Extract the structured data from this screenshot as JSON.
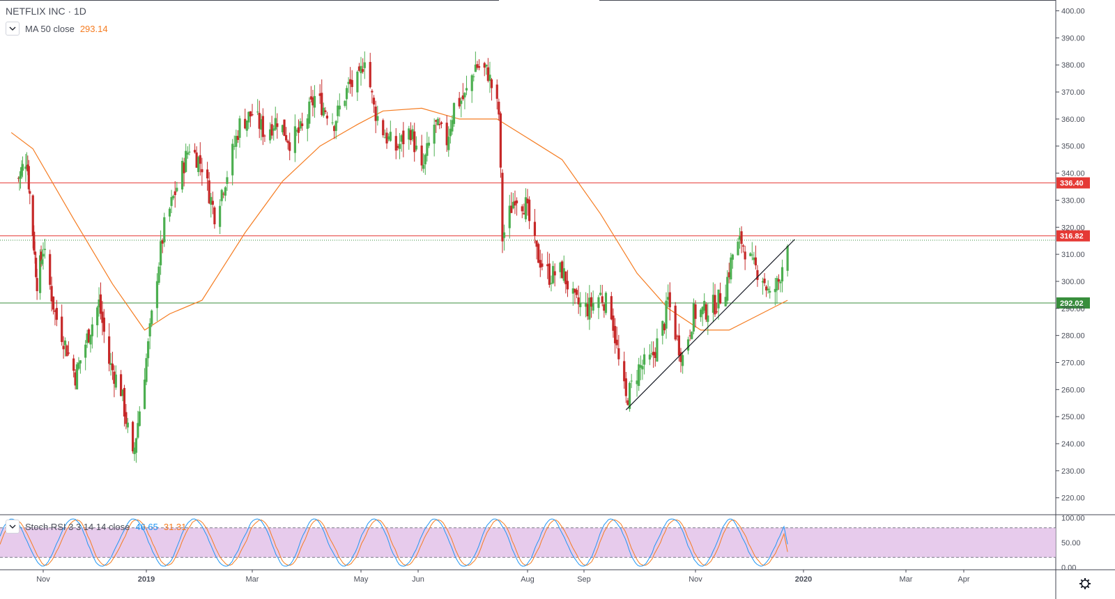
{
  "header": {
    "symbol": "NETFLIX INC · 1D"
  },
  "indicators": {
    "ma": {
      "label": "MA 50 close",
      "value": "293.14",
      "color": "#f57c21"
    },
    "stoch_rsi": {
      "label": "Stoch RSI 3 3 14 14 close",
      "k_value": "46.65",
      "d_value": "31.31",
      "k_color": "#2196f3",
      "d_color": "#f57c21"
    }
  },
  "colors": {
    "up": "#4caf50",
    "down": "#c62828",
    "ma": "#f57c21",
    "resistance": "#e53935",
    "support": "#388e3c",
    "band_fill": "#e1bee7"
  },
  "icons": {
    "collapse": "chevron-down-icon",
    "settings": "gear-icon"
  },
  "chart_data": {
    "type": "candlestick",
    "price_axis": {
      "ylim": [
        214,
        404
      ],
      "ticks": [
        "400.00",
        "390.00",
        "380.00",
        "370.00",
        "360.00",
        "350.00",
        "340.00",
        "330.00",
        "320.00",
        "310.00",
        "300.00",
        "290.00",
        "280.00",
        "270.00",
        "260.00",
        "250.00",
        "240.00",
        "230.00",
        "220.00"
      ]
    },
    "time_axis": {
      "labels": [
        "Nov",
        "2019",
        "Mar",
        "May",
        "Jun",
        "Aug",
        "Sep",
        "Nov",
        "2020",
        "Mar",
        "Apr"
      ]
    },
    "horizontal_levels": [
      {
        "value": 336.4,
        "label": "336.40",
        "color": "#e53935"
      },
      {
        "value": 316.82,
        "label": "316.82",
        "color": "#e53935"
      },
      {
        "value": 292.02,
        "label": "292.02",
        "color": "#388e3c"
      },
      {
        "value": 315.2,
        "label": "",
        "color": "#388e3c",
        "style": "dotted"
      }
    ],
    "trendline": {
      "from": {
        "date": "2019-09-24",
        "price": 252.5
      },
      "to": {
        "date": "2019-12-27",
        "price": 315.5
      }
    },
    "close_path": [
      {
        "date": "2018-10-08",
        "close": 338
      },
      {
        "date": "2018-10-16",
        "close": 346
      },
      {
        "date": "2018-10-22",
        "close": 318
      },
      {
        "date": "2018-10-26",
        "close": 300
      },
      {
        "date": "2018-11-01",
        "close": 312
      },
      {
        "date": "2018-11-08",
        "close": 288
      },
      {
        "date": "2018-11-15",
        "close": 275
      },
      {
        "date": "2018-11-20",
        "close": 265
      },
      {
        "date": "2018-11-27",
        "close": 279
      },
      {
        "date": "2018-12-04",
        "close": 292
      },
      {
        "date": "2018-12-10",
        "close": 270
      },
      {
        "date": "2018-12-17",
        "close": 260
      },
      {
        "date": "2018-12-24",
        "close": 234
      },
      {
        "date": "2019-01-02",
        "close": 276
      },
      {
        "date": "2019-01-07",
        "close": 303
      },
      {
        "date": "2019-01-11",
        "close": 320
      },
      {
        "date": "2019-01-18",
        "close": 335
      },
      {
        "date": "2019-01-25",
        "close": 350
      },
      {
        "date": "2019-02-01",
        "close": 343
      },
      {
        "date": "2019-02-08",
        "close": 325
      },
      {
        "date": "2019-02-15",
        "close": 340
      },
      {
        "date": "2019-02-22",
        "close": 358
      },
      {
        "date": "2019-03-01",
        "close": 362
      },
      {
        "date": "2019-03-08",
        "close": 355
      },
      {
        "date": "2019-03-15",
        "close": 360
      },
      {
        "date": "2019-03-22",
        "close": 352
      },
      {
        "date": "2019-03-29",
        "close": 356
      },
      {
        "date": "2019-04-05",
        "close": 368
      },
      {
        "date": "2019-04-12",
        "close": 363
      },
      {
        "date": "2019-04-16",
        "close": 359
      },
      {
        "date": "2019-04-24",
        "close": 372
      },
      {
        "date": "2019-04-30",
        "close": 374
      },
      {
        "date": "2019-05-03",
        "close": 384
      },
      {
        "date": "2019-05-08",
        "close": 364
      },
      {
        "date": "2019-05-14",
        "close": 354
      },
      {
        "date": "2019-05-20",
        "close": 349
      },
      {
        "date": "2019-05-28",
        "close": 356
      },
      {
        "date": "2019-06-03",
        "close": 340
      },
      {
        "date": "2019-06-10",
        "close": 358
      },
      {
        "date": "2019-06-17",
        "close": 352
      },
      {
        "date": "2019-06-21",
        "close": 365
      },
      {
        "date": "2019-06-27",
        "close": 368
      },
      {
        "date": "2019-07-03",
        "close": 380
      },
      {
        "date": "2019-07-10",
        "close": 377
      },
      {
        "date": "2019-07-16",
        "close": 362
      },
      {
        "date": "2019-07-18",
        "close": 316
      },
      {
        "date": "2019-07-25",
        "close": 332
      },
      {
        "date": "2019-07-31",
        "close": 328
      },
      {
        "date": "2019-08-06",
        "close": 310
      },
      {
        "date": "2019-08-13",
        "close": 302
      },
      {
        "date": "2019-08-20",
        "close": 304
      },
      {
        "date": "2019-08-27",
        "close": 292
      },
      {
        "date": "2019-09-03",
        "close": 290
      },
      {
        "date": "2019-09-10",
        "close": 295
      },
      {
        "date": "2019-09-16",
        "close": 289
      },
      {
        "date": "2019-09-20",
        "close": 270
      },
      {
        "date": "2019-09-24",
        "close": 256
      },
      {
        "date": "2019-10-01",
        "close": 268
      },
      {
        "date": "2019-10-08",
        "close": 271
      },
      {
        "date": "2019-10-15",
        "close": 285
      },
      {
        "date": "2019-10-17",
        "close": 293
      },
      {
        "date": "2019-10-22",
        "close": 278
      },
      {
        "date": "2019-10-25",
        "close": 272
      },
      {
        "date": "2019-10-31",
        "close": 288
      },
      {
        "date": "2019-11-06",
        "close": 289
      },
      {
        "date": "2019-11-13",
        "close": 292
      },
      {
        "date": "2019-11-18",
        "close": 298
      },
      {
        "date": "2019-11-22",
        "close": 310
      },
      {
        "date": "2019-11-27",
        "close": 315
      },
      {
        "date": "2019-12-03",
        "close": 306
      },
      {
        "date": "2019-12-09",
        "close": 302
      },
      {
        "date": "2019-12-13",
        "close": 294
      },
      {
        "date": "2019-12-18",
        "close": 300
      },
      {
        "date": "2019-12-23",
        "close": 316
      }
    ],
    "ma_path": [
      {
        "date": "2018-10-01",
        "value": 355
      },
      {
        "date": "2018-10-22",
        "value": 349
      },
      {
        "date": "2018-11-19",
        "value": 323
      },
      {
        "date": "2018-12-12",
        "value": 299
      },
      {
        "date": "2018-12-31",
        "value": 282
      },
      {
        "date": "2019-01-14",
        "value": 288
      },
      {
        "date": "2019-02-01",
        "value": 293
      },
      {
        "date": "2019-02-25",
        "value": 318
      },
      {
        "date": "2019-03-18",
        "value": 337
      },
      {
        "date": "2019-04-08",
        "value": 350
      },
      {
        "date": "2019-04-29",
        "value": 358
      },
      {
        "date": "2019-05-13",
        "value": 363
      },
      {
        "date": "2019-06-03",
        "value": 364
      },
      {
        "date": "2019-06-24",
        "value": 360
      },
      {
        "date": "2019-07-15",
        "value": 360
      },
      {
        "date": "2019-08-01",
        "value": 353
      },
      {
        "date": "2019-08-20",
        "value": 345
      },
      {
        "date": "2019-09-10",
        "value": 325
      },
      {
        "date": "2019-09-30",
        "value": 303
      },
      {
        "date": "2019-10-17",
        "value": 290
      },
      {
        "date": "2019-11-04",
        "value": 282
      },
      {
        "date": "2019-11-20",
        "value": 282
      },
      {
        "date": "2019-12-05",
        "value": 287
      },
      {
        "date": "2019-12-23",
        "value": 293
      }
    ],
    "stoch_rsi_panel": {
      "ylim": [
        -5,
        105
      ],
      "ticks": [
        "100.00",
        "50.00",
        "0.00"
      ],
      "band": [
        20,
        80
      ],
      "k_last": 46.65,
      "d_last": 31.31
    }
  }
}
